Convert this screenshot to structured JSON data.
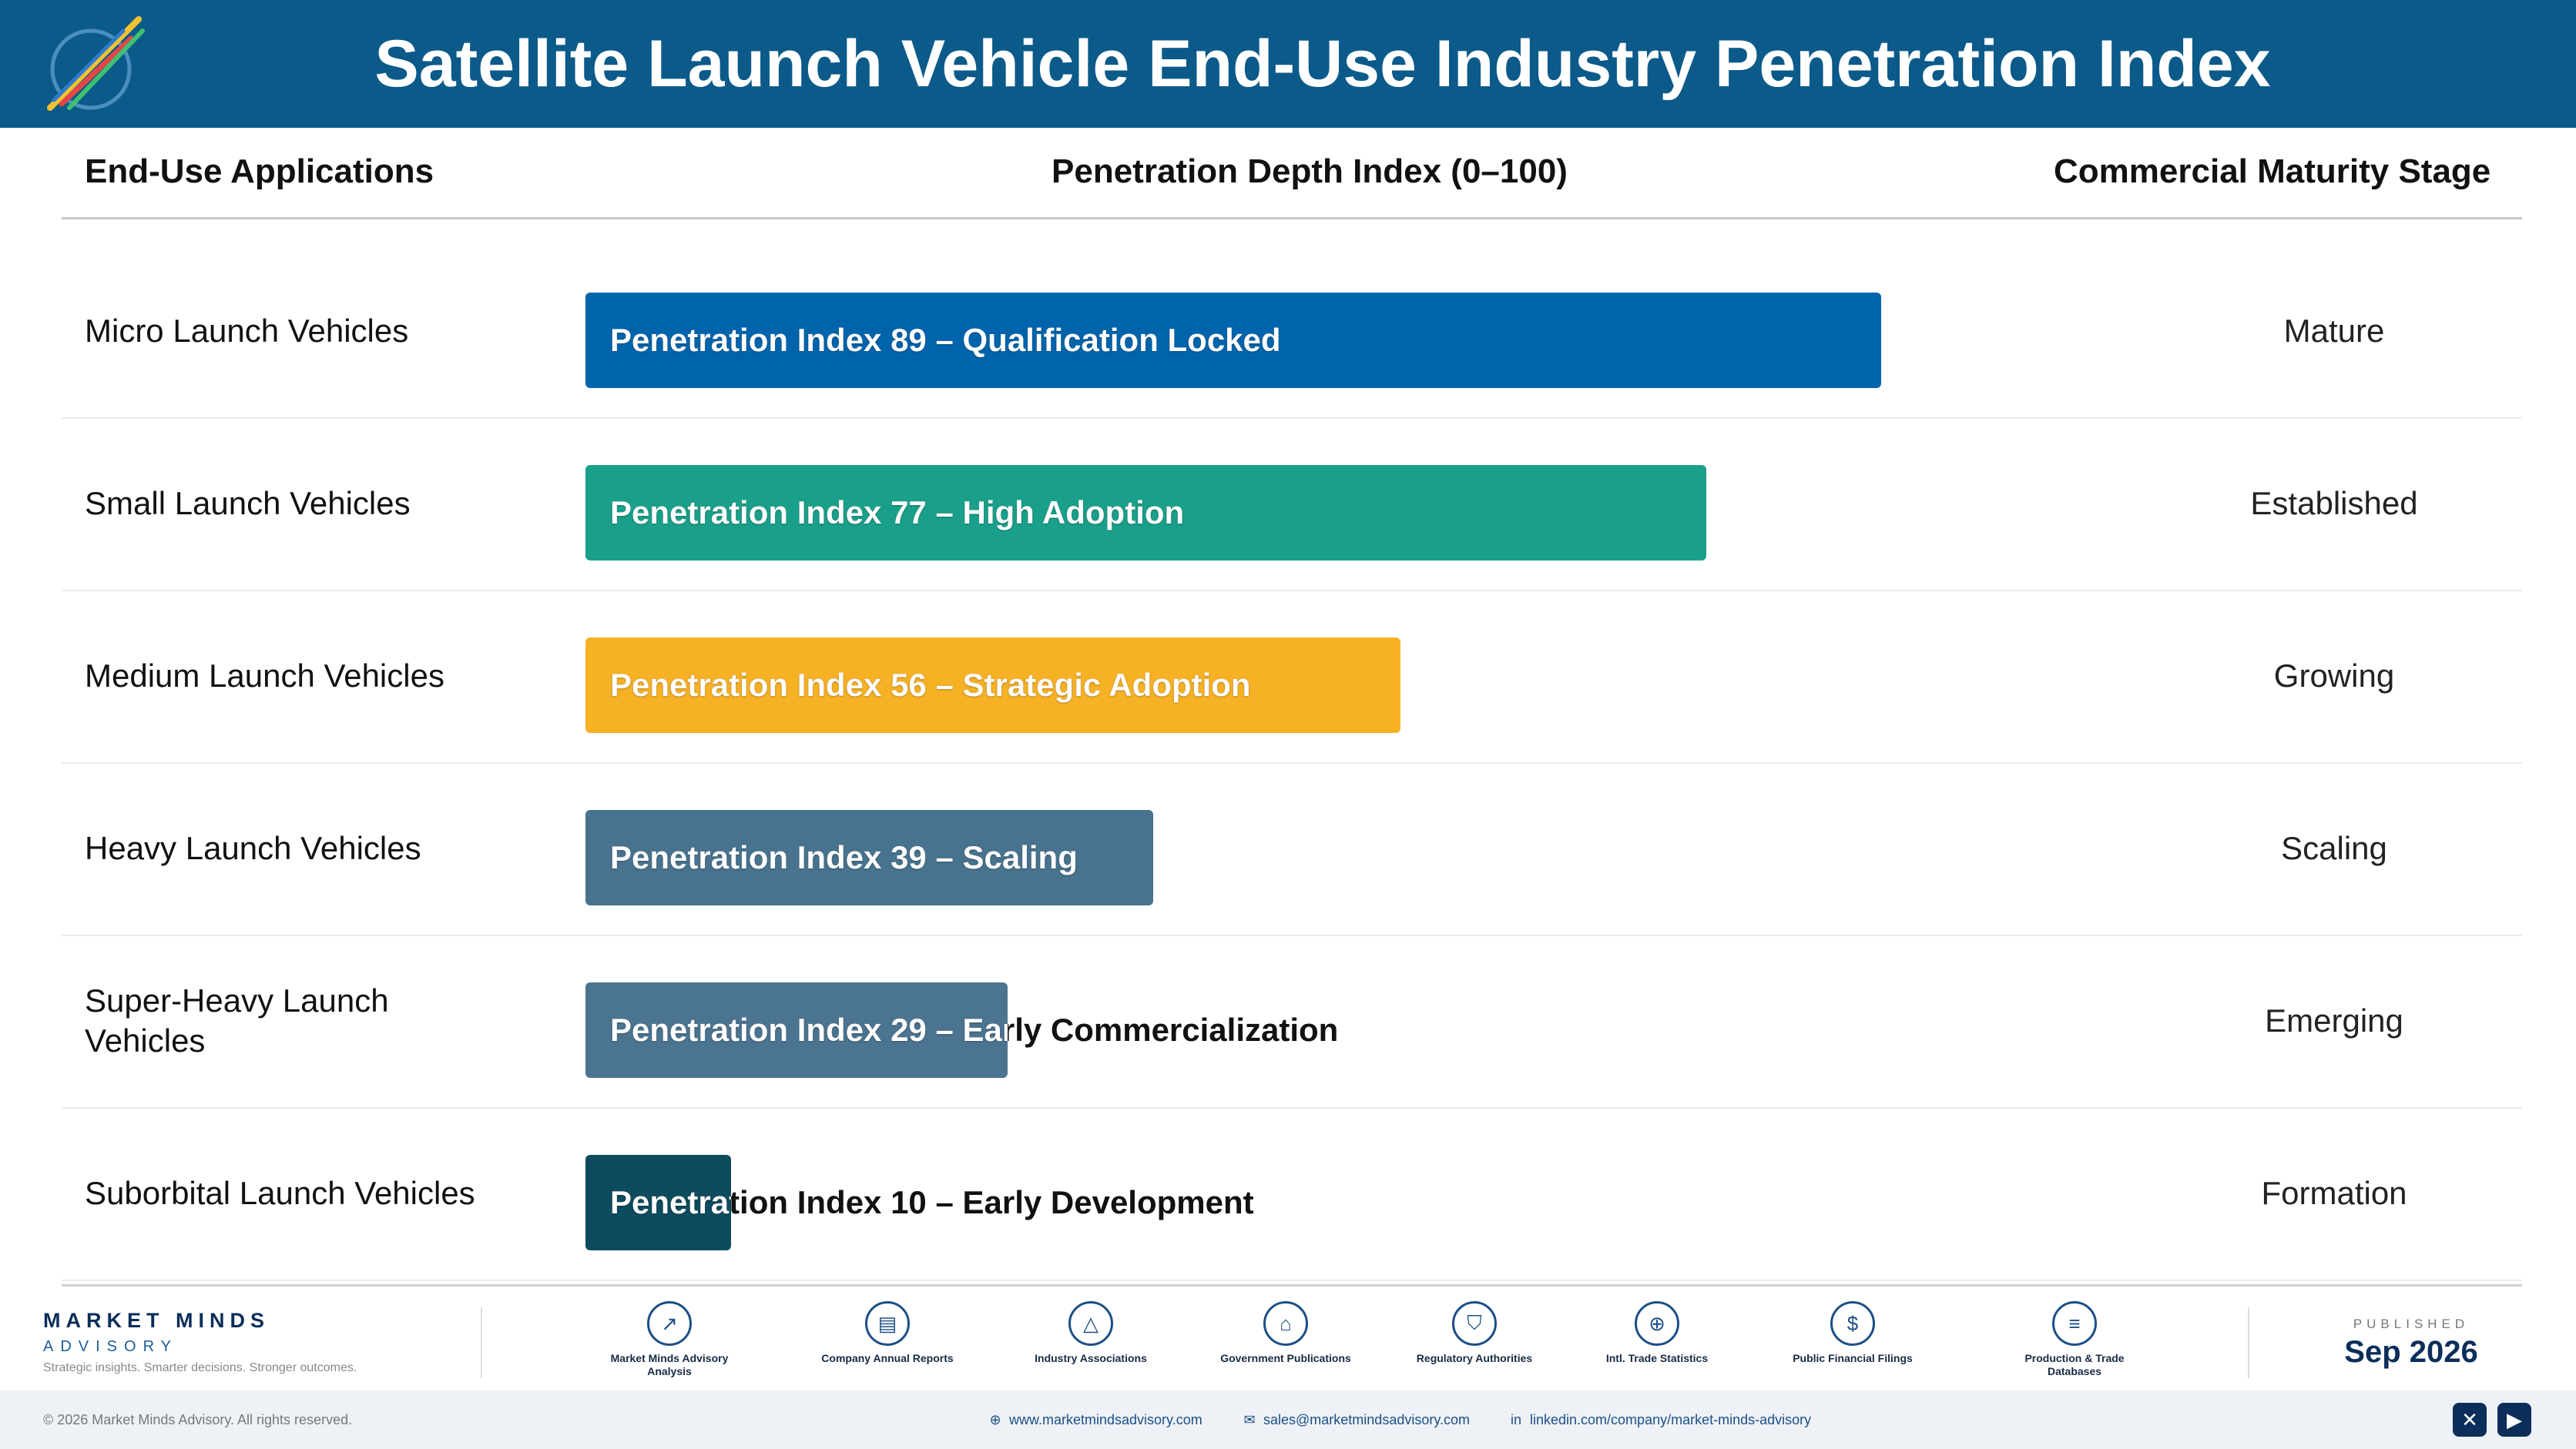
{
  "header": {
    "title": "Satellite Launch Vehicle End-Use Industry Penetration Index"
  },
  "columns": {
    "applications": "End-Use Applications",
    "index": "Penetration Depth Index (0–100)",
    "stage": "Commercial Maturity Stage"
  },
  "chart_data": {
    "type": "bar",
    "orientation": "horizontal",
    "xlim": [
      0,
      100
    ],
    "title": "",
    "categories": [
      "Micro Launch Vehicles",
      "Small Launch Vehicles",
      "Medium Launch Vehicles",
      "Heavy Launch Vehicles",
      "Super-Heavy Launch Vehicles",
      "Suborbital Launch Vehicles"
    ],
    "values": [
      89,
      77,
      56,
      39,
      29,
      10
    ],
    "rows": [
      {
        "label": "Micro Launch Vehicles",
        "value": 89,
        "bar_label": "Penetration Index 89 – Qualification Locked",
        "stage": "Mature",
        "color": "#0064ad"
      },
      {
        "label": "Small Launch Vehicles",
        "value": 77,
        "bar_label": "Penetration Index 77 – High Adoption",
        "stage": "Established",
        "color": "#1aa08a"
      },
      {
        "label": "Medium Launch Vehicles",
        "value": 56,
        "bar_label": "Penetration Index 56 – Strategic Adoption",
        "stage": "Growing",
        "color": "#f7b125"
      },
      {
        "label": "Heavy Launch Vehicles",
        "value": 39,
        "bar_label": "Penetration Index 39 – Scaling",
        "stage": "Scaling",
        "color": "#48738f"
      },
      {
        "label": "Super-Heavy Launch Vehicles",
        "value": 29,
        "bar_label": "Penetration Index 29 – Early Commercialization",
        "stage": "Emerging",
        "color": "#4b7491"
      },
      {
        "label": "Suborbital Launch Vehicles",
        "value": 10,
        "bar_label": "Penetration Index 10 – Early Development",
        "stage": "Formation",
        "color": "#0d4b5e"
      }
    ]
  },
  "footer": {
    "brand_name": "MARKET MINDS",
    "brand_sub": "ADVISORY",
    "tagline": "Strategic insights. Smarter decisions. Stronger outcomes.",
    "sources": [
      {
        "label": "Market Minds Advisory Analysis",
        "icon": "chart-icon"
      },
      {
        "label": "Company Annual Reports",
        "icon": "document-icon"
      },
      {
        "label": "Industry Associations",
        "icon": "network-icon"
      },
      {
        "label": "Government Publications",
        "icon": "government-icon"
      },
      {
        "label": "Regulatory Authorities",
        "icon": "shield-icon"
      },
      {
        "label": "Intl. Trade Statistics",
        "icon": "globe-icon"
      },
      {
        "label": "Public Financial Filings",
        "icon": "dollar-icon"
      },
      {
        "label": "Production & Trade Databases",
        "icon": "database-icon"
      }
    ],
    "published_label": "PUBLISHED",
    "published_date": "Sep 2026",
    "copyright": "© 2026 Market Minds Advisory. All rights reserved.",
    "website": "www.marketmindsadvisory.com",
    "email": "sales@marketmindsadvisory.com",
    "linkedin": "linkedin.com/company/market-minds-advisory"
  }
}
